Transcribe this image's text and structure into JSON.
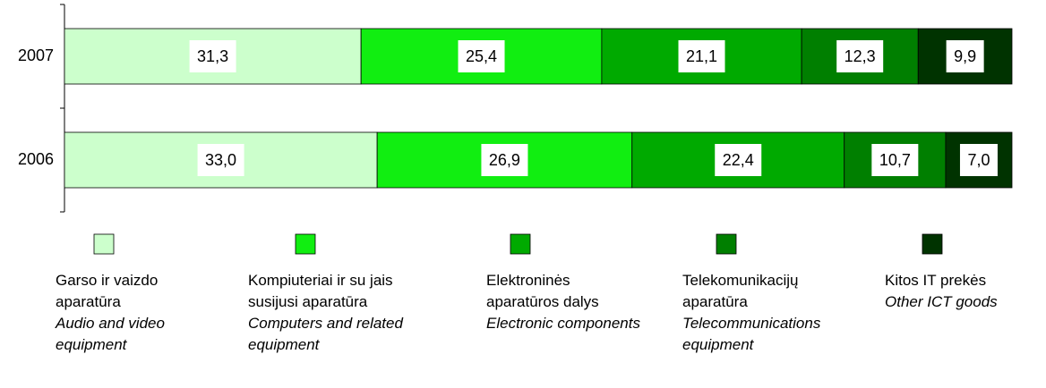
{
  "chart_data": {
    "type": "stacked-bar-horizontal",
    "categories": [
      "2007",
      "2006"
    ],
    "xlim": [
      0,
      100
    ],
    "series": [
      {
        "name": "Garso ir vaizdo aparatūra",
        "name_en": "Audio and video equipment",
        "color": "#ccffcc",
        "values": [
          31.3,
          33.0
        ],
        "value_labels": [
          "31,3",
          "33,0"
        ]
      },
      {
        "name": "Kompiuteriai ir su jais susijusi aparatūra",
        "name_en": "Computers and related equipment",
        "color": "#11ee11",
        "values": [
          25.4,
          26.9
        ],
        "value_labels": [
          "25,4",
          "26,9"
        ]
      },
      {
        "name": "Elektroninės aparatūros dalys",
        "name_en": "Electronic components",
        "color": "#00aa00",
        "values": [
          21.1,
          22.4
        ],
        "value_labels": [
          "21,1",
          "22,4"
        ]
      },
      {
        "name": "Telekomunikacijų aparatūra",
        "name_en": "Telecommunications equipment",
        "color": "#007f00",
        "values": [
          12.3,
          10.7
        ],
        "value_labels": [
          "12,3",
          "10,7"
        ]
      },
      {
        "name": "Kitos IT prekės",
        "name_en": "Other ICT goods",
        "color": "#003300",
        "values": [
          9.9,
          7.0
        ],
        "value_labels": [
          "9,9",
          "7,0"
        ]
      }
    ]
  }
}
